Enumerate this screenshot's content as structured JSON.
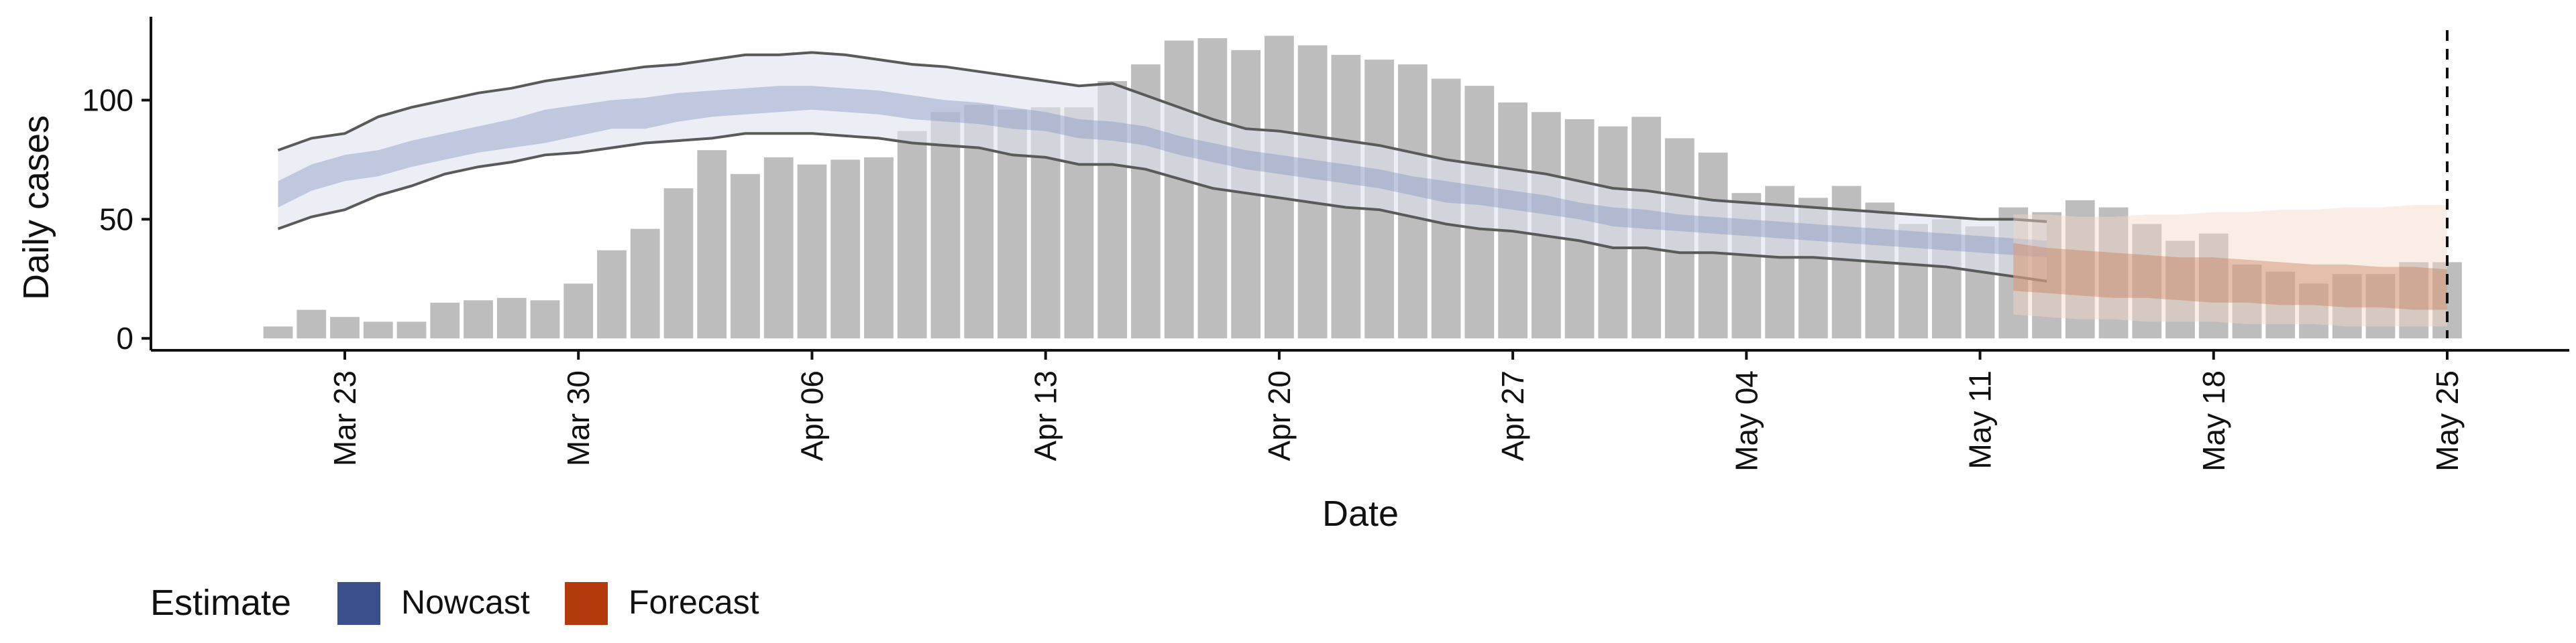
{
  "chart_data": {
    "type": "bar",
    "title": "",
    "xlabel": "Date",
    "ylabel": "Daily cases",
    "ylim": [
      -5,
      135
    ],
    "grid": false,
    "legend": {
      "title": "Estimate",
      "placement": "bottom-left",
      "entries": [
        {
          "label": "Nowcast",
          "color": "#3b4f8c"
        },
        {
          "label": "Forecast",
          "color": "#b23a0d"
        }
      ]
    },
    "y_ticks": [
      0,
      50,
      100
    ],
    "x_ticks": [
      {
        "date": "2020-03-23",
        "label": "Mar 23"
      },
      {
        "date": "2020-03-30",
        "label": "Mar 30"
      },
      {
        "date": "2020-04-06",
        "label": "Apr 06"
      },
      {
        "date": "2020-04-13",
        "label": "Apr 13"
      },
      {
        "date": "2020-04-20",
        "label": "Apr 20"
      },
      {
        "date": "2020-04-27",
        "label": "Apr 27"
      },
      {
        "date": "2020-05-04",
        "label": "May 04"
      },
      {
        "date": "2020-05-11",
        "label": "May 11"
      },
      {
        "date": "2020-05-18",
        "label": "May 18"
      },
      {
        "date": "2020-05-25",
        "label": "May 25"
      }
    ],
    "reference_line": {
      "date": "2020-05-25",
      "style": "dashed"
    },
    "bar_start_date": "2020-03-21",
    "bars": [
      5,
      12,
      9,
      7,
      7,
      15,
      16,
      17,
      16,
      23,
      37,
      46,
      63,
      79,
      69,
      76,
      73,
      75,
      76,
      87,
      95,
      98,
      96,
      97,
      97,
      108,
      115,
      125,
      126,
      121,
      127,
      123,
      119,
      117,
      115,
      109,
      106,
      99,
      95,
      92,
      89,
      93,
      84,
      78,
      61,
      64,
      59,
      64,
      57,
      48,
      50,
      47,
      55,
      53,
      58,
      55,
      48,
      41,
      44,
      31,
      28,
      23,
      27,
      27,
      32,
      32
    ],
    "series": [
      {
        "name": "Nowcast",
        "start_date": "2020-03-21",
        "lower90": [
          46,
          51,
          54,
          60,
          64,
          69,
          72,
          74,
          77,
          78,
          80,
          82,
          83,
          84,
          86,
          86,
          86,
          85,
          84,
          82,
          81,
          80,
          77,
          76,
          73,
          73,
          71,
          67,
          63,
          61,
          59,
          57,
          55,
          54,
          51,
          48,
          46,
          45,
          43,
          41,
          38,
          38,
          36,
          36,
          35,
          34,
          34,
          33,
          32,
          31,
          30,
          28,
          26,
          24
        ],
        "lower50": [
          55,
          62,
          66,
          68,
          72,
          75,
          78,
          80,
          82,
          85,
          88,
          88,
          91,
          93,
          94,
          95,
          96,
          95,
          94,
          92,
          91,
          90,
          88,
          87,
          84,
          83,
          81,
          77,
          74,
          71,
          69,
          67,
          65,
          63,
          60,
          57,
          56,
          54,
          52,
          50,
          47,
          46,
          45,
          44,
          43,
          42,
          41,
          40,
          39,
          38,
          37,
          36,
          35,
          34
        ],
        "upper50": [
          66,
          73,
          77,
          79,
          83,
          86,
          89,
          92,
          96,
          98,
          100,
          101,
          103,
          104,
          105,
          106,
          106,
          105,
          104,
          102,
          100,
          99,
          97,
          95,
          92,
          91,
          89,
          85,
          82,
          79,
          77,
          75,
          73,
          71,
          68,
          66,
          64,
          62,
          60,
          57,
          55,
          54,
          52,
          51,
          50,
          49,
          48,
          47,
          46,
          45,
          44,
          43,
          42,
          41
        ],
        "upper90": [
          79,
          84,
          86,
          93,
          97,
          100,
          103,
          105,
          108,
          110,
          112,
          114,
          115,
          117,
          119,
          119,
          120,
          119,
          117,
          115,
          114,
          112,
          110,
          108,
          106,
          107,
          102,
          97,
          92,
          88,
          87,
          85,
          83,
          81,
          78,
          75,
          73,
          71,
          69,
          66,
          63,
          62,
          60,
          58,
          57,
          56,
          55,
          54,
          53,
          52,
          51,
          50,
          50,
          49
        ]
      },
      {
        "name": "Forecast",
        "start_date": "2020-05-12",
        "lower90": [
          10,
          9,
          8,
          8,
          7,
          7,
          7,
          6,
          6,
          6,
          5,
          5,
          5,
          5
        ],
        "lower50": [
          20,
          19,
          18,
          17,
          17,
          16,
          15,
          15,
          14,
          14,
          13,
          13,
          12,
          12
        ],
        "upper50": [
          40,
          38,
          37,
          36,
          35,
          34,
          34,
          33,
          32,
          31,
          31,
          30,
          30,
          29
        ],
        "upper90": [
          52,
          52,
          51,
          51,
          52,
          52,
          53,
          53,
          54,
          54,
          55,
          55,
          56,
          56
        ]
      }
    ]
  }
}
